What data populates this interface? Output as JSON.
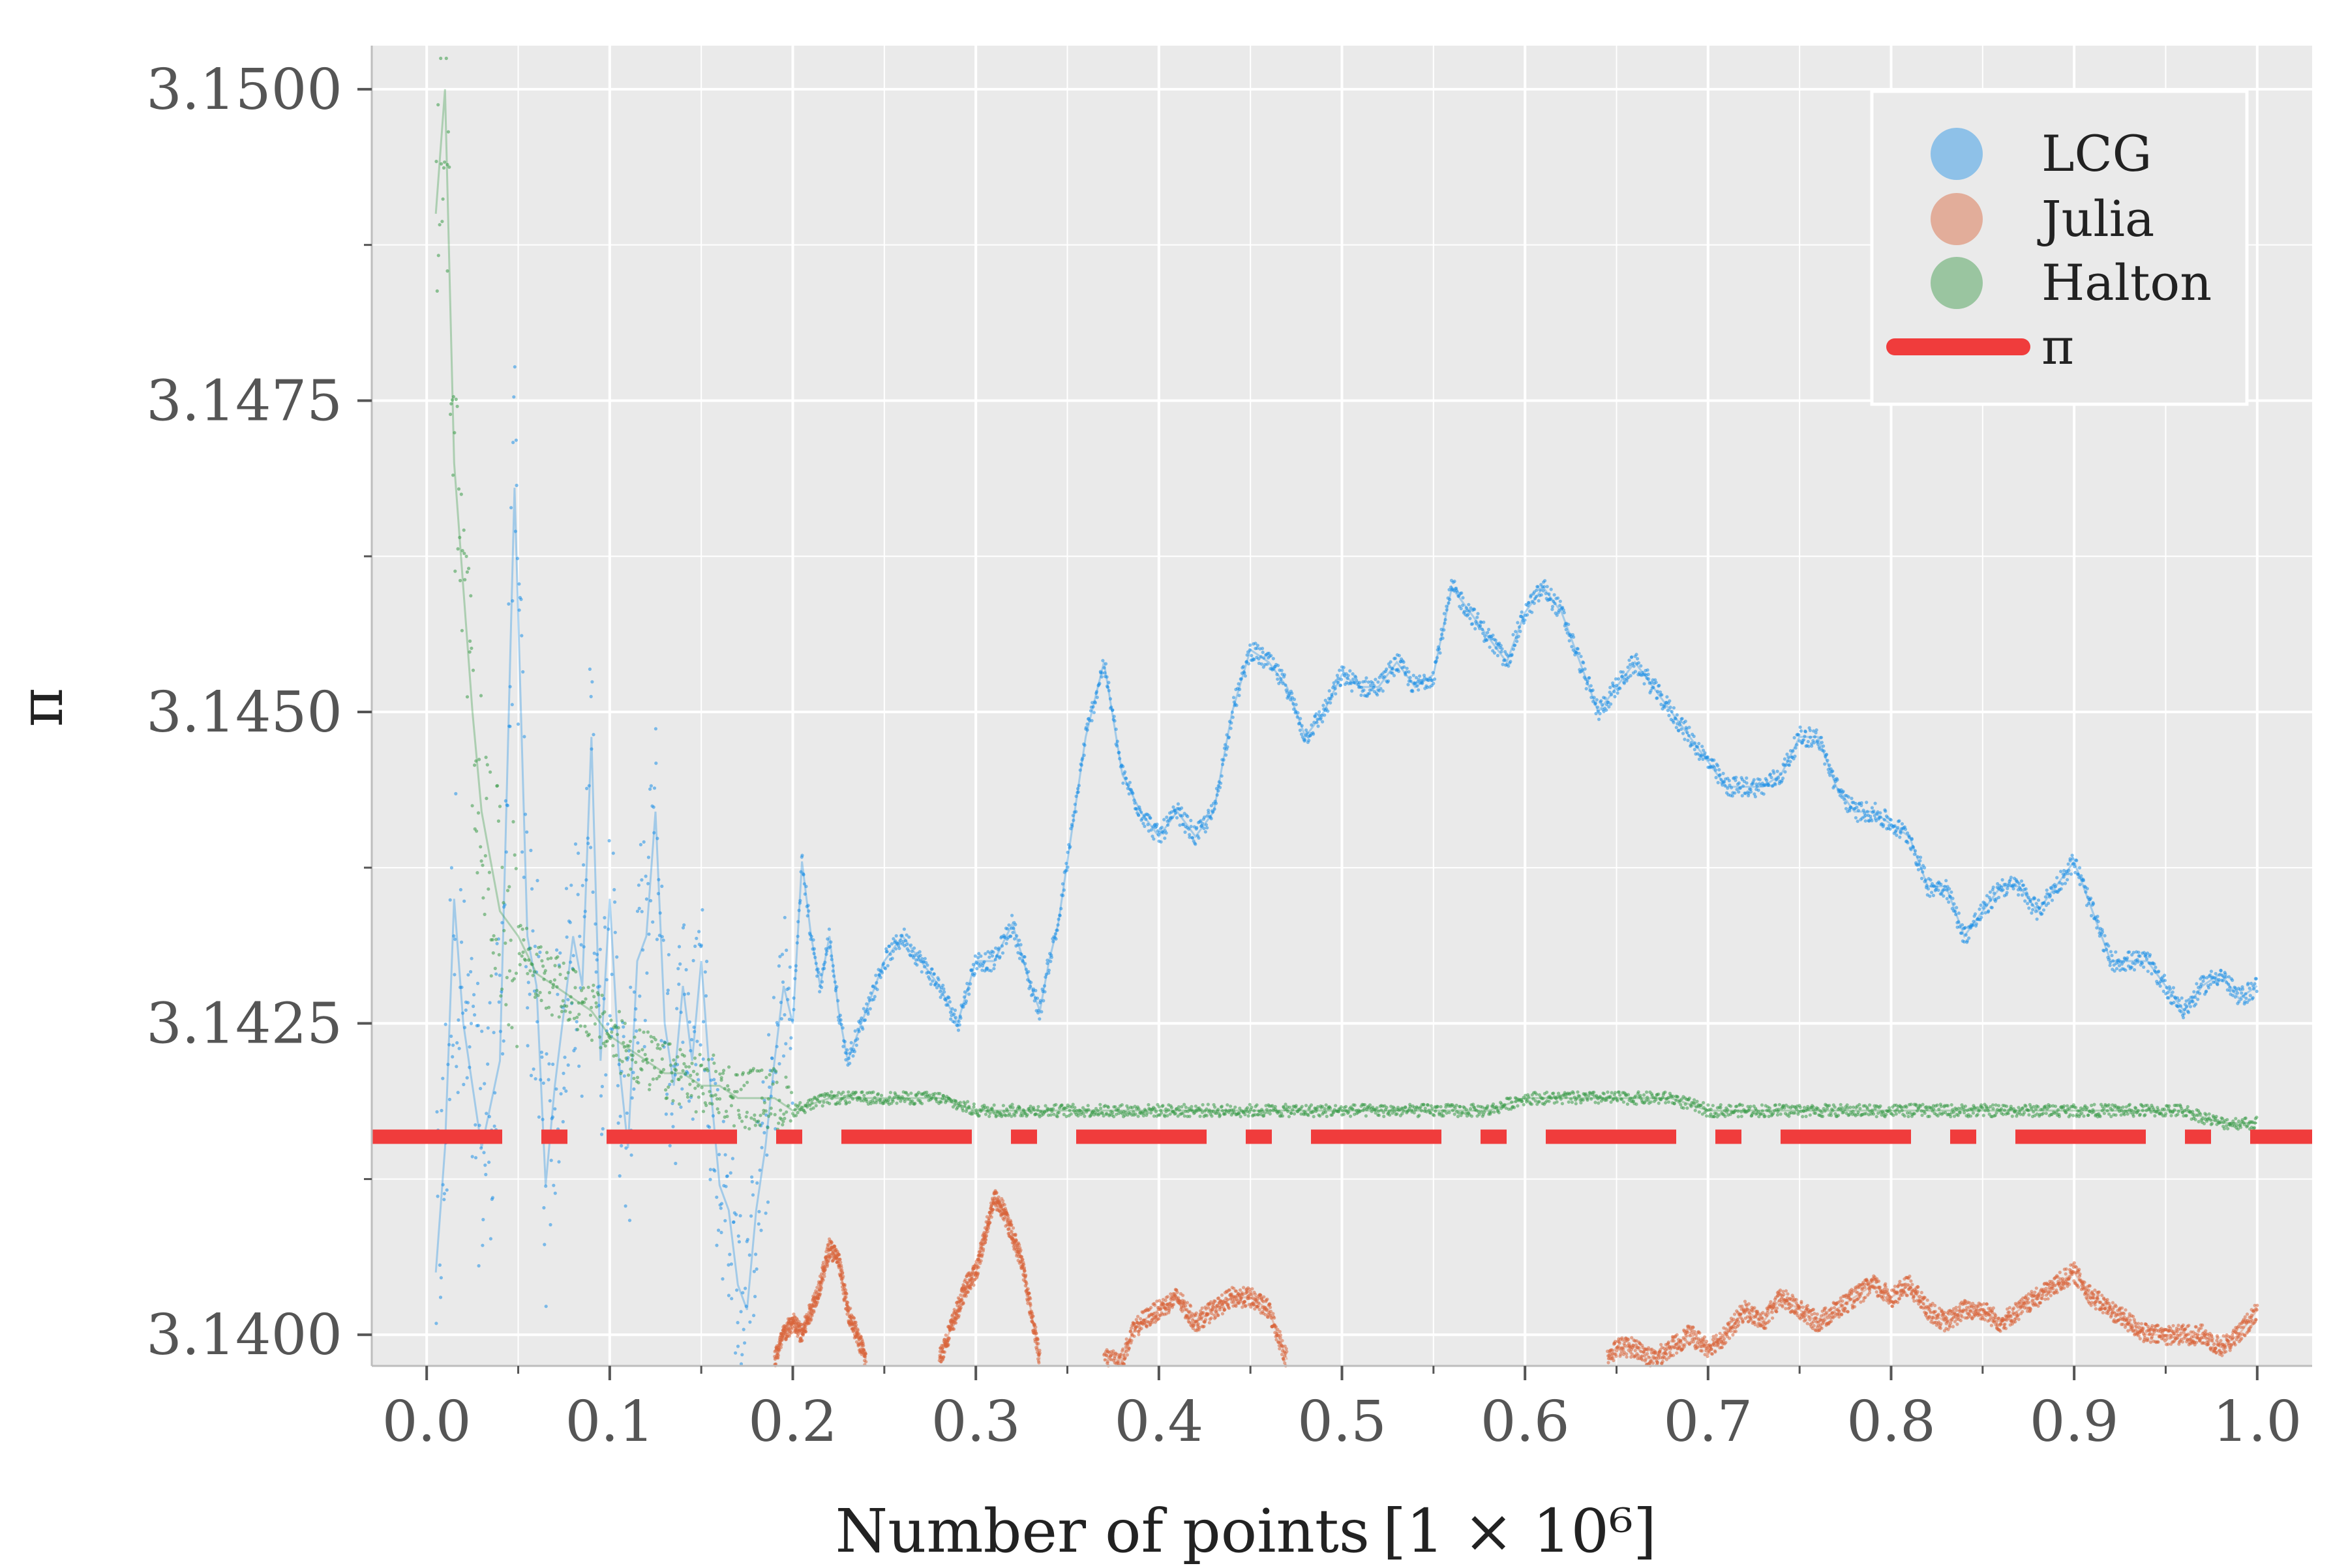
{
  "chart_data": {
    "type": "scatter",
    "title": "",
    "xlabel": "Number of points",
    "xlabel_unit": "[1 × 10⁶]",
    "ylabel": "π",
    "xlim": [
      -0.03,
      1.03
    ],
    "ylim": [
      3.13975,
      3.15035
    ],
    "xticks": [
      0.0,
      0.1,
      0.2,
      0.3,
      0.4,
      0.5,
      0.6,
      0.7,
      0.8,
      0.9,
      1.0
    ],
    "xtick_labels": [
      "0.0",
      "0.1",
      "0.2",
      "0.3",
      "0.4",
      "0.5",
      "0.6",
      "0.7",
      "0.8",
      "0.9",
      "1.0"
    ],
    "yticks": [
      3.14,
      3.1425,
      3.145,
      3.1475,
      3.15
    ],
    "ytick_labels": [
      "3.1400",
      "3.1425",
      "3.1450",
      "3.1475",
      "3.1500"
    ],
    "grid": true,
    "legend_position": "top-right",
    "colors": {
      "background": "#eaeaea",
      "grid": "#ffffff",
      "lcg": "#1e90e6",
      "julia": "#d9643a",
      "halton": "#3a9a48",
      "pi": "#f03c3c"
    },
    "series": [
      {
        "name": "LCG",
        "color": "#1e90e6",
        "x": [
          0.005,
          0.01,
          0.015,
          0.02,
          0.03,
          0.04,
          0.048,
          0.055,
          0.06,
          0.065,
          0.07,
          0.075,
          0.08,
          0.085,
          0.09,
          0.095,
          0.1,
          0.105,
          0.11,
          0.115,
          0.12,
          0.125,
          0.13,
          0.135,
          0.14,
          0.145,
          0.15,
          0.155,
          0.16,
          0.165,
          0.17,
          0.175,
          0.18,
          0.185,
          0.19,
          0.195,
          0.2,
          0.205,
          0.21,
          0.215,
          0.22,
          0.225,
          0.23,
          0.235,
          0.24,
          0.25,
          0.26,
          0.27,
          0.28,
          0.29,
          0.3,
          0.31,
          0.32,
          0.33,
          0.335,
          0.34,
          0.345,
          0.35,
          0.36,
          0.37,
          0.38,
          0.39,
          0.4,
          0.41,
          0.42,
          0.43,
          0.44,
          0.45,
          0.46,
          0.47,
          0.48,
          0.49,
          0.5,
          0.51,
          0.52,
          0.53,
          0.54,
          0.55,
          0.56,
          0.57,
          0.58,
          0.59,
          0.6,
          0.61,
          0.62,
          0.63,
          0.64,
          0.65,
          0.66,
          0.67,
          0.68,
          0.69,
          0.7,
          0.71,
          0.72,
          0.73,
          0.74,
          0.75,
          0.76,
          0.77,
          0.78,
          0.79,
          0.8,
          0.81,
          0.82,
          0.83,
          0.84,
          0.85,
          0.86,
          0.87,
          0.88,
          0.89,
          0.9,
          0.91,
          0.92,
          0.93,
          0.94,
          0.95,
          0.96,
          0.97,
          0.98,
          0.99,
          1.0
        ],
        "y": [
          3.1405,
          3.1415,
          3.1435,
          3.1425,
          3.1415,
          3.1422,
          3.1468,
          3.1432,
          3.1428,
          3.1412,
          3.142,
          3.1426,
          3.1432,
          3.1428,
          3.1448,
          3.1422,
          3.1435,
          3.1422,
          3.1415,
          3.143,
          3.1432,
          3.1442,
          3.1425,
          3.142,
          3.1428,
          3.1422,
          3.143,
          3.142,
          3.1412,
          3.141,
          3.1404,
          3.1402,
          3.141,
          3.1415,
          3.1422,
          3.1428,
          3.1425,
          3.1438,
          3.1432,
          3.1428,
          3.1432,
          3.1426,
          3.1422,
          3.1424,
          3.1426,
          3.143,
          3.1432,
          3.143,
          3.1428,
          3.1425,
          3.143,
          3.143,
          3.1433,
          3.1428,
          3.1426,
          3.143,
          3.1433,
          3.1438,
          3.1448,
          3.1454,
          3.1445,
          3.1442,
          3.144,
          3.1442,
          3.144,
          3.1442,
          3.145,
          3.1455,
          3.1454,
          3.1452,
          3.1448,
          3.145,
          3.1453,
          3.1452,
          3.1452,
          3.1454,
          3.1452,
          3.1453,
          3.146,
          3.1458,
          3.1456,
          3.1454,
          3.1458,
          3.146,
          3.1458,
          3.1454,
          3.145,
          3.1452,
          3.1454,
          3.1452,
          3.145,
          3.1448,
          3.1446,
          3.1444,
          3.1444,
          3.1444,
          3.1445,
          3.1448,
          3.1448,
          3.1444,
          3.1442,
          3.1442,
          3.1441,
          3.144,
          3.1436,
          3.1436,
          3.1432,
          3.1434,
          3.1436,
          3.1436,
          3.1434,
          3.1436,
          3.1438,
          3.1434,
          3.143,
          3.143,
          3.143,
          3.1428,
          3.1426,
          3.1428,
          3.1429,
          3.1427,
          3.1428
        ]
      },
      {
        "name": "Julia",
        "color": "#d9643a",
        "segments": [
          {
            "x": [
              0.19,
              0.195,
              0.2,
              0.205,
              0.21,
              0.215,
              0.22,
              0.225,
              0.23,
              0.235,
              0.24
            ],
            "y": [
              3.1398,
              3.14,
              3.1401,
              3.14,
              3.1402,
              3.1404,
              3.1407,
              3.1406,
              3.1402,
              3.14,
              3.1398
            ]
          },
          {
            "x": [
              0.28,
              0.29,
              0.295,
              0.3,
              0.305,
              0.31,
              0.315,
              0.32,
              0.325,
              0.33,
              0.335
            ],
            "y": [
              3.1398,
              3.1402,
              3.1404,
              3.1405,
              3.1408,
              3.1411,
              3.141,
              3.1408,
              3.1406,
              3.1402,
              3.1398
            ]
          },
          {
            "x": [
              0.37,
              0.38,
              0.385,
              0.39,
              0.4,
              0.41,
              0.42,
              0.43,
              0.44,
              0.45,
              0.46,
              0.47
            ],
            "y": [
              3.1398,
              3.1398,
              3.14,
              3.1401,
              3.1402,
              3.1403,
              3.1401,
              3.1402,
              3.1403,
              3.1403,
              3.1402,
              3.1398
            ]
          },
          {
            "x": [
              0.645,
              0.65,
              0.66,
              0.67,
              0.68,
              0.69,
              0.7,
              0.71,
              0.72,
              0.73,
              0.74,
              0.75,
              0.76,
              0.77,
              0.78,
              0.79,
              0.8,
              0.81,
              0.82,
              0.83,
              0.84,
              0.85,
              0.86,
              0.87,
              0.88,
              0.89,
              0.9,
              0.91,
              0.92,
              0.93,
              0.94,
              0.95,
              0.96,
              0.97,
              0.98,
              0.99,
              1.0
            ],
            "y": [
              3.1398,
              3.1399,
              3.1399,
              3.1398,
              3.1399,
              3.14,
              3.1399,
              3.14,
              3.1402,
              3.1401,
              3.1403,
              3.1402,
              3.1401,
              3.1402,
              3.1403,
              3.1404,
              3.1403,
              3.1404,
              3.1402,
              3.1401,
              3.1402,
              3.1402,
              3.1401,
              3.1402,
              3.1403,
              3.1404,
              3.1405,
              3.1403,
              3.1402,
              3.1401,
              3.14,
              3.14,
              3.14,
              3.14,
              3.1399,
              3.14,
              3.1402
            ]
          }
        ]
      },
      {
        "name": "Halton",
        "color": "#3a9a48",
        "x": [
          0.005,
          0.01,
          0.015,
          0.02,
          0.025,
          0.03,
          0.035,
          0.04,
          0.05,
          0.06,
          0.07,
          0.08,
          0.09,
          0.1,
          0.11,
          0.12,
          0.13,
          0.14,
          0.15,
          0.16,
          0.17,
          0.18,
          0.19,
          0.2,
          0.22,
          0.24,
          0.26,
          0.28,
          0.3,
          0.32,
          0.34,
          0.36,
          0.38,
          0.4,
          0.42,
          0.44,
          0.46,
          0.48,
          0.5,
          0.52,
          0.54,
          0.56,
          0.58,
          0.6,
          0.62,
          0.64,
          0.66,
          0.68,
          0.7,
          0.72,
          0.74,
          0.76,
          0.78,
          0.8,
          0.82,
          0.84,
          0.86,
          0.88,
          0.9,
          0.92,
          0.94,
          0.96,
          0.98,
          1.0
        ],
        "y": [
          3.149,
          3.15,
          3.147,
          3.146,
          3.145,
          3.1442,
          3.1438,
          3.1434,
          3.1432,
          3.1429,
          3.1428,
          3.1427,
          3.1426,
          3.1424,
          3.1423,
          3.1422,
          3.1421,
          3.1421,
          3.142,
          3.142,
          3.1419,
          3.1419,
          3.1419,
          3.1418,
          3.1419,
          3.1419,
          3.1419,
          3.1419,
          3.1418,
          3.1418,
          3.1418,
          3.1418,
          3.1418,
          3.1418,
          3.1418,
          3.1418,
          3.1418,
          3.1418,
          3.1418,
          3.1418,
          3.1418,
          3.1418,
          3.1418,
          3.1419,
          3.1419,
          3.1419,
          3.1419,
          3.1419,
          3.1418,
          3.1418,
          3.1418,
          3.1418,
          3.1418,
          3.1418,
          3.1418,
          3.1418,
          3.1418,
          3.1418,
          3.1418,
          3.1418,
          3.1418,
          3.1418,
          3.1417,
          3.1417
        ]
      },
      {
        "name": "π",
        "color": "#f03c3c",
        "type": "hline",
        "y": 3.14159
      }
    ]
  }
}
